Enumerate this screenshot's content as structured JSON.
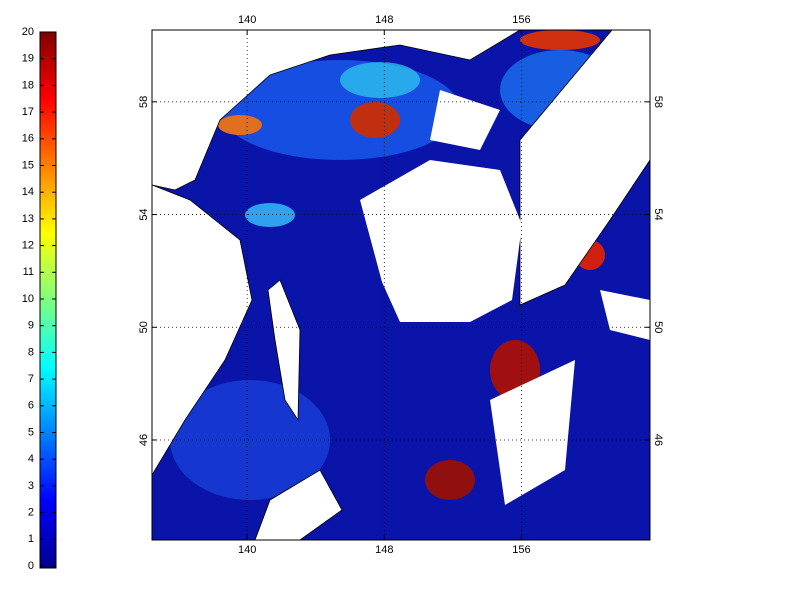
{
  "colorbar": {
    "clim": [
      0,
      20
    ],
    "ticks": [
      0,
      1,
      2,
      3,
      4,
      5,
      6,
      7,
      8,
      9,
      10,
      11,
      12,
      13,
      14,
      15,
      16,
      17,
      18,
      19,
      20
    ]
  },
  "map": {
    "xlim": [
      134.45,
      163.5
    ],
    "ylim": [
      42.45,
      60.55
    ],
    "xticks": [
      140,
      148,
      156
    ],
    "yticks": [
      46,
      50,
      54,
      58
    ],
    "grid": true
  }
}
